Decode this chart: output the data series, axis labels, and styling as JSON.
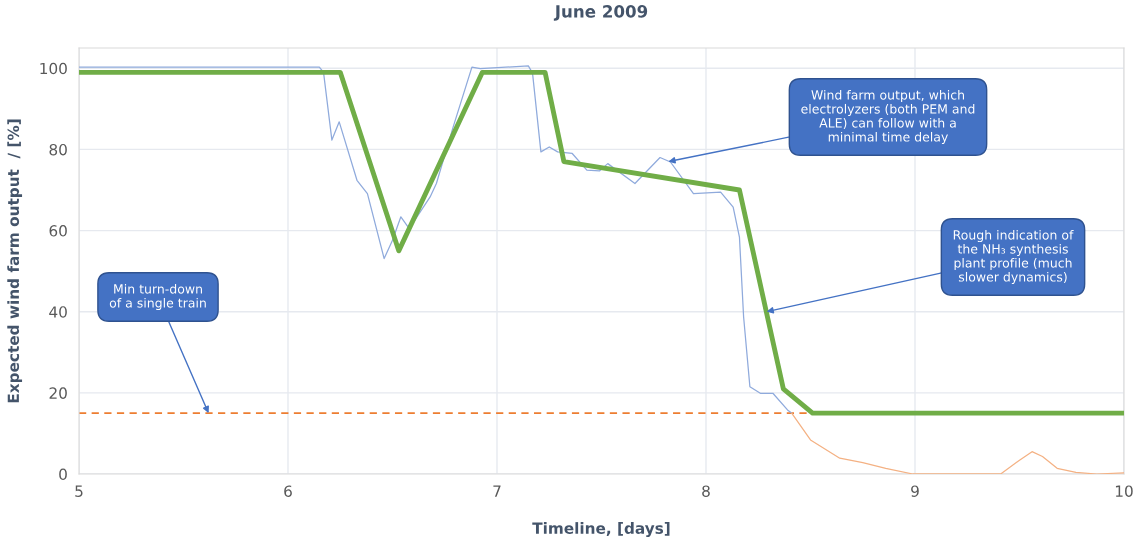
{
  "chart_data": {
    "type": "line",
    "title": "June 2009",
    "xlabel": "Timeline, [days]",
    "ylabel": "Expected wind farm output  / [%]",
    "xlim": [
      5,
      10
    ],
    "xticks": [
      5,
      6,
      7,
      8,
      9,
      10
    ],
    "ylim": [
      0,
      105
    ],
    "yticks": [
      0,
      20,
      40,
      60,
      80,
      100
    ],
    "grid": true,
    "legend": false,
    "marker": "none",
    "series": [
      {
        "color": "#8faadc",
        "line_style": "solid",
        "x": [
          5,
          6.15,
          6.17,
          6.21,
          6.245,
          6.33,
          6.38,
          6.46,
          6.5,
          6.54,
          6.58,
          6.68,
          6.71,
          6.79,
          6.88,
          6.92,
          7.15,
          7.17,
          7.21,
          7.25,
          7.29,
          7.36,
          7.43,
          7.49,
          7.53,
          7.66,
          7.78,
          7.83,
          7.94,
          8.07,
          8.13,
          8.16,
          8.18,
          8.21,
          8.26,
          8.32,
          8.39,
          8.41
        ],
        "values": [
          100.3,
          100.3,
          99,
          82.3,
          86.8,
          72.4,
          69.1,
          53.1,
          57.6,
          63.4,
          60.5,
          68.3,
          71.6,
          85.5,
          100.3,
          99.9,
          100.6,
          98.8,
          79.4,
          80.6,
          79.4,
          79,
          74.9,
          74.7,
          76.5,
          71.6,
          78,
          76.9,
          69.1,
          69.5,
          65.8,
          58.4,
          38.7,
          21.5,
          19.9,
          19.9,
          15.8,
          15
        ]
      },
      {
        "color": "#f4b183",
        "line_style": "solid",
        "x": [
          8.41,
          8.5,
          8.64,
          8.75,
          8.86,
          8.99,
          9.41,
          9.5,
          9.56,
          9.61,
          9.68,
          9.77,
          9.87,
          10
        ],
        "values": [
          15,
          8.4,
          3.9,
          2.8,
          1.4,
          0,
          0,
          3.4,
          5.5,
          4.3,
          1.4,
          0.4,
          0,
          0.3
        ]
      },
      {
        "color": "#70ad47",
        "line_style": "solid",
        "x": [
          5,
          6.25,
          6.53,
          6.93,
          7.23,
          7.32,
          8.16,
          8.37,
          8.51,
          10
        ],
        "values": [
          99,
          99,
          55,
          99,
          99,
          77,
          70,
          21,
          15,
          15
        ]
      }
    ],
    "ref_lines": [
      {
        "axis": "y",
        "value": 15,
        "color": "#ed7d31",
        "line_style": "dashed"
      }
    ],
    "annotations": [
      {
        "text": "Min turn-down\nof a single train",
        "x": 5.62,
        "y": 15
      },
      {
        "text": "Wind farm output, which\nelectrolyzers (both PEM and\nALE) can follow with a\nminimal time delay",
        "x": 7.82,
        "y": 77
      },
      {
        "text": "Rough indication of\nthe NH₃ synthesis\nplant profile (much\nslower dynamics)",
        "x": 8.29,
        "y": 40
      }
    ]
  }
}
